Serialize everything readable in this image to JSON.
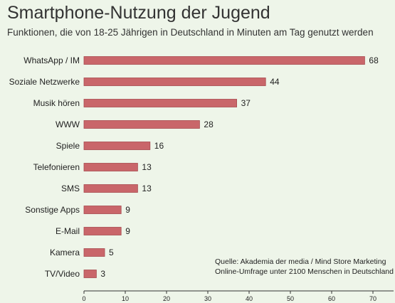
{
  "title": "Smartphone-Nutzung der Jugend",
  "subtitle": "Funktionen, die von 18-25 Jährigen in Deutschland in Minuten am Tag genutzt werden",
  "source_lines": [
    "Quelle: Akademia der media / Mind Store Marketing",
    "Online-Umfrage unter 2100 Menschen in Deutschland"
  ],
  "colors": {
    "background": "#eef5e9",
    "bar_fill": "#c9666a",
    "bar_stroke": "#a84a4f",
    "axis": "#333333"
  },
  "chart_data": {
    "type": "bar",
    "orientation": "horizontal",
    "categories": [
      "WhatsApp / IM",
      "Soziale Netzwerke",
      "Musik hören",
      "WWW",
      "Spiele",
      "Telefonieren",
      "SMS",
      "Sonstige Apps",
      "E-Mail",
      "Kamera",
      "TV/Video"
    ],
    "values": [
      68,
      44,
      37,
      28,
      16,
      13,
      13,
      9,
      9,
      5,
      3
    ],
    "xlim": [
      0,
      75
    ],
    "xticks": [
      0,
      10,
      20,
      30,
      40,
      50,
      60,
      70
    ],
    "grid": false,
    "data_labels": true
  }
}
